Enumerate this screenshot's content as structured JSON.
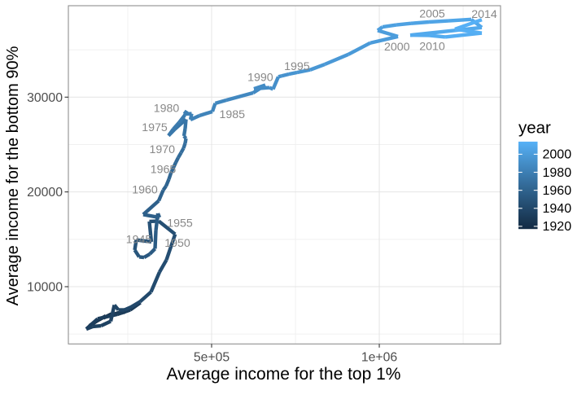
{
  "chart_data": {
    "type": "line",
    "title": "",
    "xlabel": "Average income for the top 1%",
    "ylabel": "Average income for the bottom 90%",
    "xlim": [
      72867,
      1361546
    ],
    "ylim": [
      3959,
      39649
    ],
    "x_major_ticks": [
      {
        "value": 500000,
        "label": "5e+05"
      },
      {
        "value": 1000000,
        "label": "1e+06"
      }
    ],
    "x_minor_ticks": [
      250000,
      750000,
      1250000
    ],
    "y_major_ticks": [
      {
        "value": 10000,
        "label": "10000"
      },
      {
        "value": 20000,
        "label": "20000"
      },
      {
        "value": 30000,
        "label": "30000"
      }
    ],
    "y_minor_ticks": [
      5000,
      15000,
      25000,
      35000
    ],
    "grid": "on",
    "legend": {
      "title": "year",
      "position": "right",
      "type": "colorbar",
      "low_color": "#132B43",
      "high_color": "#56B1F7",
      "domain": [
        1917,
        2014
      ],
      "ticks": [
        2000,
        1980,
        1960,
        1940,
        1920
      ]
    },
    "colors": {
      "axis_text": "#4d4d4d",
      "axis_title": "#000000",
      "annotation_text": "#888888",
      "grid_major": "#e4e4e4",
      "grid_minor": "#f0f0f0",
      "panel_border": "#909090",
      "tick_mark": "#333333",
      "background": "#ffffff"
    },
    "series": [
      {
        "name": "us-income-path",
        "x_field": "top1",
        "y_field": "bottom90",
        "color_field": "year",
        "points": [
          {
            "year": 1917,
            "top1": 201500,
            "bottom90": 7120
          },
          {
            "year": 1918,
            "top1": 177200,
            "bottom90": 6690
          },
          {
            "year": 1919,
            "top1": 184500,
            "bottom90": 6910
          },
          {
            "year": 1920,
            "top1": 160200,
            "bottom90": 6430
          },
          {
            "year": 1921,
            "top1": 136000,
            "bottom90": 5870
          },
          {
            "year": 1922,
            "top1": 150500,
            "bottom90": 6260
          },
          {
            "year": 1923,
            "top1": 174800,
            "bottom90": 6730
          },
          {
            "year": 1924,
            "top1": 196600,
            "bottom90": 6950
          },
          {
            "year": 1925,
            "top1": 211200,
            "bottom90": 7120
          },
          {
            "year": 1926,
            "top1": 225800,
            "bottom90": 7290
          },
          {
            "year": 1927,
            "top1": 235500,
            "bottom90": 7250
          },
          {
            "year": 1928,
            "top1": 267000,
            "bottom90": 7850
          },
          {
            "year": 1929,
            "top1": 287600,
            "bottom90": 8320
          },
          {
            "year": 1930,
            "top1": 257300,
            "bottom90": 7550
          },
          {
            "year": 1931,
            "top1": 218500,
            "bottom90": 7080
          },
          {
            "year": 1932,
            "top1": 160200,
            "bottom90": 6610
          },
          {
            "year": 1933,
            "top1": 126300,
            "bottom90": 5530
          },
          {
            "year": 1934,
            "top1": 145700,
            "bottom90": 5790
          },
          {
            "year": 1935,
            "top1": 169900,
            "bottom90": 5870
          },
          {
            "year": 1936,
            "top1": 199100,
            "bottom90": 6350
          },
          {
            "year": 1937,
            "top1": 210000,
            "bottom90": 8070
          },
          {
            "year": 1938,
            "top1": 222100,
            "bottom90": 7550
          },
          {
            "year": 1939,
            "top1": 240300,
            "bottom90": 7550
          },
          {
            "year": 1940,
            "top1": 259700,
            "bottom90": 7850
          },
          {
            "year": 1941,
            "top1": 286400,
            "bottom90": 8410
          },
          {
            "year": 1942,
            "top1": 319200,
            "bottom90": 9440
          },
          {
            "year": 1943,
            "top1": 344700,
            "bottom90": 11550
          },
          {
            "year": 1944,
            "top1": 365300,
            "bottom90": 12820
          },
          {
            "year": 1945,
            "top1": 391300,
            "bottom90": 15540
          },
          {
            "year": 1946,
            "top1": 342300,
            "bottom90": 16920
          },
          {
            "year": 1947,
            "top1": 314300,
            "bottom90": 16880
          },
          {
            "year": 1948,
            "top1": 320400,
            "bottom90": 14730
          },
          {
            "year": 1949,
            "top1": 275500,
            "bottom90": 14940
          },
          {
            "year": 1950,
            "top1": 270700,
            "bottom90": 13870
          },
          {
            "year": 1951,
            "top1": 284000,
            "bottom90": 13140
          },
          {
            "year": 1952,
            "top1": 298600,
            "bottom90": 13090
          },
          {
            "year": 1953,
            "top1": 315600,
            "bottom90": 13440
          },
          {
            "year": 1954,
            "top1": 331300,
            "bottom90": 14000
          },
          {
            "year": 1955,
            "top1": 333800,
            "bottom90": 15930
          },
          {
            "year": 1956,
            "top1": 339800,
            "bottom90": 17730
          },
          {
            "year": 1957,
            "top1": 344700,
            "bottom90": 17300
          },
          {
            "year": 1958,
            "top1": 296100,
            "bottom90": 17610
          },
          {
            "year": 1959,
            "top1": 342300,
            "bottom90": 19070
          },
          {
            "year": 1960,
            "top1": 355600,
            "bottom90": 20180
          },
          {
            "year": 1961,
            "top1": 364100,
            "bottom90": 20610
          },
          {
            "year": 1962,
            "top1": 372600,
            "bottom90": 21340
          },
          {
            "year": 1963,
            "top1": 378700,
            "bottom90": 21990
          },
          {
            "year": 1964,
            "top1": 387100,
            "bottom90": 22630
          },
          {
            "year": 1965,
            "top1": 393200,
            "bottom90": 23110
          },
          {
            "year": 1966,
            "top1": 400500,
            "bottom90": 23620
          },
          {
            "year": 1967,
            "top1": 409000,
            "bottom90": 24140
          },
          {
            "year": 1968,
            "top1": 416300,
            "bottom90": 24610
          },
          {
            "year": 1969,
            "top1": 421100,
            "bottom90": 25130
          },
          {
            "year": 1970,
            "top1": 423600,
            "bottom90": 25640
          },
          {
            "year": 1971,
            "top1": 417500,
            "bottom90": 25900
          },
          {
            "year": 1972,
            "top1": 421100,
            "bottom90": 26670
          },
          {
            "year": 1973,
            "top1": 423600,
            "bottom90": 27660
          },
          {
            "year": 1974,
            "top1": 390800,
            "bottom90": 26630
          },
          {
            "year": 1975,
            "top1": 371400,
            "bottom90": 25940
          },
          {
            "year": 1976,
            "top1": 385900,
            "bottom90": 26630
          },
          {
            "year": 1977,
            "top1": 402900,
            "bottom90": 27320
          },
          {
            "year": 1978,
            "top1": 419900,
            "bottom90": 28090
          },
          {
            "year": 1979,
            "top1": 426000,
            "bottom90": 28560
          },
          {
            "year": 1980,
            "top1": 418700,
            "bottom90": 28220
          },
          {
            "year": 1981,
            "top1": 440500,
            "bottom90": 28260
          },
          {
            "year": 1982,
            "top1": 436900,
            "bottom90": 27620
          },
          {
            "year": 1983,
            "top1": 463600,
            "bottom90": 28050
          },
          {
            "year": 1984,
            "top1": 502400,
            "bottom90": 28480
          },
          {
            "year": 1985,
            "top1": 510900,
            "bottom90": 29350
          },
          {
            "year": 1986,
            "top1": 543700,
            "bottom90": 29680
          },
          {
            "year": 1987,
            "top1": 623800,
            "bottom90": 30450
          },
          {
            "year": 1988,
            "top1": 660200,
            "bottom90": 31270
          },
          {
            "year": 1989,
            "top1": 626200,
            "bottom90": 30880
          },
          {
            "year": 1990,
            "top1": 672300,
            "bottom90": 31010
          },
          {
            "year": 1991,
            "top1": 683200,
            "bottom90": 30840
          },
          {
            "year": 1992,
            "top1": 699000,
            "bottom90": 32150
          },
          {
            "year": 1993,
            "top1": 708700,
            "bottom90": 32240
          },
          {
            "year": 1994,
            "top1": 730600,
            "bottom90": 32430
          },
          {
            "year": 1995,
            "top1": 754800,
            "bottom90": 32600
          },
          {
            "year": 1996,
            "top1": 793700,
            "bottom90": 32880
          },
          {
            "year": 1997,
            "top1": 837300,
            "bottom90": 33460
          },
          {
            "year": 1998,
            "top1": 907700,
            "bottom90": 34510
          },
          {
            "year": 1999,
            "top1": 973200,
            "bottom90": 35720
          },
          {
            "year": 2000,
            "top1": 1055800,
            "bottom90": 36400
          },
          {
            "year": 2001,
            "top1": 995100,
            "bottom90": 37040
          },
          {
            "year": 2002,
            "top1": 1009600,
            "bottom90": 37410
          },
          {
            "year": 2003,
            "top1": 1050900,
            "bottom90": 37620
          },
          {
            "year": 2004,
            "top1": 1094600,
            "bottom90": 37780
          },
          {
            "year": 2005,
            "top1": 1148000,
            "bottom90": 37930
          },
          {
            "year": 2006,
            "top1": 1206200,
            "bottom90": 38050
          },
          {
            "year": 2007,
            "top1": 1274200,
            "bottom90": 38200
          },
          {
            "year": 2008,
            "top1": 1305700,
            "bottom90": 37350
          },
          {
            "year": 2009,
            "top1": 1092200,
            "bottom90": 36540
          },
          {
            "year": 2010,
            "top1": 1148000,
            "bottom90": 36520
          },
          {
            "year": 2011,
            "top1": 1196500,
            "bottom90": 36350
          },
          {
            "year": 2012,
            "top1": 1305700,
            "bottom90": 36760
          },
          {
            "year": 2013,
            "top1": 1225600,
            "bottom90": 37170
          },
          {
            "year": 2014,
            "top1": 1305700,
            "bottom90": 38170
          }
        ]
      }
    ],
    "annotations": [
      {
        "label": "1945",
        "x": 282800,
        "y": 15030
      },
      {
        "label": "1950",
        "x": 398100,
        "y": 14610
      },
      {
        "label": "1955",
        "x": 405400,
        "y": 16730
      },
      {
        "label": "1960",
        "x": 301000,
        "y": 20270
      },
      {
        "label": "1965",
        "x": 355600,
        "y": 22420
      },
      {
        "label": "1970",
        "x": 352700,
        "y": 24520
      },
      {
        "label": "1975",
        "x": 330100,
        "y": 26820
      },
      {
        "label": "1980",
        "x": 365300,
        "y": 28850
      },
      {
        "label": "1985",
        "x": 561400,
        "y": 28220
      },
      {
        "label": "1990",
        "x": 645400,
        "y": 32100
      },
      {
        "label": "1995",
        "x": 754600,
        "y": 33290
      },
      {
        "label": "2000",
        "x": 1052800,
        "y": 35320
      },
      {
        "label": "2005",
        "x": 1157700,
        "y": 38810
      },
      {
        "label": "2010",
        "x": 1157700,
        "y": 35360
      },
      {
        "label": "2014",
        "x": 1313000,
        "y": 38760
      }
    ]
  }
}
